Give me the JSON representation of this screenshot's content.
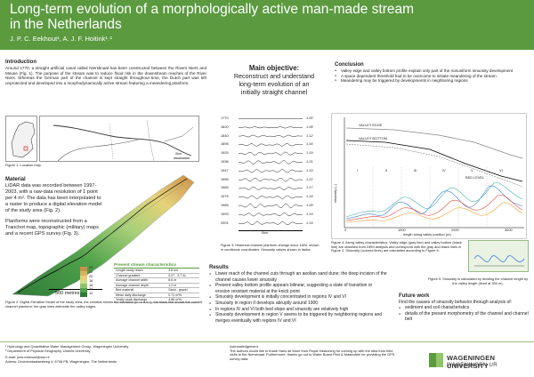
{
  "header": {
    "title_line1": "Long-term evolution of a morphologically active man-made stream",
    "title_line2": "in the Netherlands",
    "authors": "J. P. C. Eekhout¹, A. J. F. Hoitink¹˒²"
  },
  "intro": {
    "heading": "Introduction",
    "text": "Around 1770, a straight artificial canal called Niersknaal has been constructed between the Rivers Niers and Meuse (Fig. 1). The purpose of the stream was to reduce flood risk in the downstream reaches of the River Niers. Whereas the German part of the channel is kept straight throughout time, the Dutch part was left unprotected and developed into a morphodynamically active stream featuring a meandering planform."
  },
  "location_map": {
    "caption": "Figure 1. Location map.",
    "scale": "2km"
  },
  "material": {
    "heading": "Material",
    "p1": "LiDAR data was recorded between 1997-2003, with a raw-data resolution of 1 point per 4 m². The data has been interpolated to a raster to produce a digital elevation model of the study area (Fig. 2).",
    "p2": "Planforms were reconstructed from a Tranchot map, topographic (military) maps and a recent GPS survey (Fig. 3)."
  },
  "dem": {
    "scale_label": "500 metres",
    "legend": [
      "24",
      "22",
      "20",
      "18",
      "16",
      "14",
      "12"
    ],
    "legend_colors": [
      "#c9904a",
      "#d9b25f",
      "#e6d27a",
      "#cde08a",
      "#8fc66a",
      "#4fa24a",
      "#2f7a3a"
    ],
    "caption": "Figure 2. Digital Elevation Model of the study area; the colorbar shows the elevation (in m a.s.l.); the black line shows the current channel planform; the gray lines delineate the valley edges."
  },
  "characteristics": {
    "heading": "Present stream characteristics",
    "rows": [
      [
        "Length study reach",
        "3.8 km"
      ],
      [
        "Channel gradient",
        "0.07 - 3.7 ‰"
      ],
      [
        "Average channel width",
        "8.6 m"
      ],
      [
        "Average channel depth",
        "1.2 m"
      ],
      [
        "Bed material",
        "Sand - gravel"
      ],
      [
        "Mean daily discharge",
        "0.71 m³/s"
      ],
      [
        "Yearly peak discharge",
        "4.86 m³/s"
      ]
    ]
  },
  "objective": {
    "heading": "Main objective:",
    "text": "Reconstruct and understand long-term evolution of an initially straight channel"
  },
  "planforms": {
    "years": [
      "1770",
      "1820",
      "1840",
      "1895",
      "1925",
      "1936",
      "1947",
      "1955",
      "1965",
      "1975",
      "1985",
      "1993",
      "2001"
    ],
    "sinuosity": [
      "1.00",
      "1.08",
      "1.12",
      "1.16",
      "1.19",
      "1.21",
      "1.19",
      "1.22",
      "1.17",
      "1.19",
      "1.28",
      "1.19",
      "1.19"
    ],
    "axis_label": "0km",
    "caption": "Figure 3. Historical channel planform change since 1820, shown in curvilinear coordinates. Sinuosity values shown in italics."
  },
  "results": {
    "heading": "Results",
    "items": [
      "Lower reach of the channel cuts through an aeolian sand dune; the deep incision of the channel causes lower sinuosity",
      "Present valley bottom profile appears bilinear, suggesting a state of transition or erosion resistant material at the knick point",
      "Sinuosity development is initially concentrated in regions IV and VI",
      "Sinuosity in region II develops abruptly around 1900",
      "In regions IV and VI both bed slope and sinuosity are relatively high",
      "Sinuosity development in region V seems to be triggered by neighboring regions and merges eventually with regions IV and VI"
    ]
  },
  "conclusion": {
    "heading": "Conclusion",
    "items": [
      "Valley edge and valley bottom profile explain only part of the nonuniform sinuosity development",
      "A space dependent threshold had to be overcome to initiate meandering of the stream",
      "Meandering may be triggered by developments in neighboring regions"
    ]
  },
  "profile": {
    "labels": [
      "VALLEY EDGE",
      "VALLEY BOTTOM",
      "BED LEVEL"
    ],
    "regions": [
      "I",
      "II",
      "III",
      "IV",
      "V",
      "VI"
    ],
    "x_ticks": [
      "0",
      "1000",
      "2000",
      "3000"
    ],
    "x_label": "length along valley position (m)",
    "y_label": "sinuosity (–)",
    "caption": "Figure 4. Along valley characteristics. Valley edge (gray line) and valley bottom (black line) are obtained from DEM analysis and correspond with the gray and black lines in Figure 2. Sinuosity (colored lines) are calculated according to Figure 5."
  },
  "sinuosity_fig": {
    "caption": "Figure 5. Sinuosity is calculated by dividing the channel length by the valley length (fixed at 300 m)."
  },
  "future": {
    "heading": "Future work",
    "intro": "Find the causes of sinuosity behavior through analysis of:",
    "items": [
      "sediment and soil characteristics",
      "details of the present morphometry of the channel and channel belt"
    ]
  },
  "footer": {
    "affil1": "¹ Hydrology and Quantitative Water Management Group, Wageningen University",
    "affil2": "² Department of Physical Geography, Utrecht University",
    "email": "E-mail: joris.eekhout@wur.nl",
    "address": "Adress: Droevendaalsesteeg 4, 6708 PB, Wageningen, The Netherlands",
    "ack_heading": "Acknowledgement",
    "ack_text": "The authors would like to thank Hans de Moor from Royal Haskoning for coming up with the idea from field visits to the Niersknaal. Furthermore, thanks go out to Water Board Peel & Maasvallei for providing the GPS survey data.",
    "logo_text": "WAGENINGEN UNIVERSITY",
    "logo_sub": "WAGENINGEN UR"
  },
  "colors": {
    "header": "#5b9a3f",
    "accent": "#5b9a3f"
  }
}
